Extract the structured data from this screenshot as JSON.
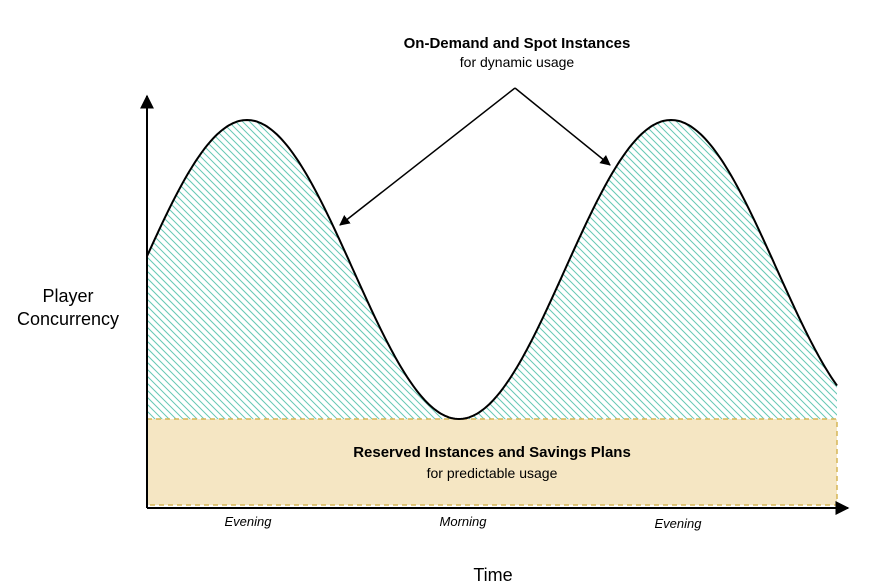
{
  "callout": {
    "title": "On-Demand and Spot Instances",
    "subtitle": "for dynamic usage"
  },
  "reserved": {
    "title": "Reserved Instances and Savings Plans",
    "subtitle": "for predictable usage",
    "fill_color": "#f5e6c3",
    "border_color": "#d6b656"
  },
  "axes": {
    "y_label_line1": "Player",
    "y_label_line2": "Concurrency",
    "x_label": "Time"
  },
  "time_labels": [
    "Evening",
    "Morning",
    "Evening"
  ],
  "hatch_color": "#67c8b5"
}
